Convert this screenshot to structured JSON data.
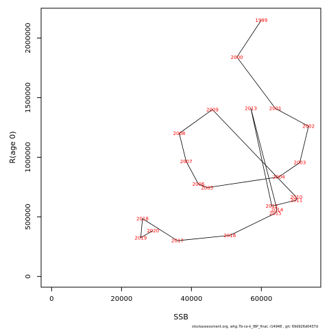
{
  "chart_data": {
    "type": "line",
    "xlabel": "SSB",
    "ylabel": "R(age 0)",
    "xlim": [
      -3000,
      77000
    ],
    "ylim": [
      -90000,
      2250000
    ],
    "xticks": [
      0,
      20000,
      40000,
      60000
    ],
    "yticks": [
      0,
      500000,
      1000000,
      1500000,
      2000000
    ],
    "grid": false,
    "series": [
      {
        "points": [
          {
            "year": "1999",
            "x": 60000,
            "y": 2150000
          },
          {
            "year": "2000",
            "x": 53000,
            "y": 1840000
          },
          {
            "year": "2001",
            "x": 64000,
            "y": 1410000
          },
          {
            "year": "2002",
            "x": 73500,
            "y": 1260000
          },
          {
            "year": "2003",
            "x": 71000,
            "y": 955000
          },
          {
            "year": "2004",
            "x": 65000,
            "y": 835000
          },
          {
            "year": "2005",
            "x": 44500,
            "y": 745000
          },
          {
            "year": "2006",
            "x": 42000,
            "y": 775000
          },
          {
            "year": "2007",
            "x": 38500,
            "y": 965000
          },
          {
            "year": "2008",
            "x": 36500,
            "y": 1200000
          },
          {
            "year": "2009",
            "x": 46000,
            "y": 1400000
          },
          {
            "year": "2010",
            "x": 70000,
            "y": 665000
          },
          {
            "year": "2011",
            "x": 70000,
            "y": 640000
          },
          {
            "year": "2012",
            "x": 63000,
            "y": 590000
          },
          {
            "year": "2013",
            "x": 57000,
            "y": 1410000
          },
          {
            "year": "2014",
            "x": 64500,
            "y": 560000
          },
          {
            "year": "2015",
            "x": 64000,
            "y": 530000
          },
          {
            "year": "2016",
            "x": 51000,
            "y": 345000
          },
          {
            "year": "2017",
            "x": 36000,
            "y": 300000
          },
          {
            "year": "2018",
            "x": 26000,
            "y": 485000
          },
          {
            "year": "2019",
            "x": 25500,
            "y": 325000
          },
          {
            "year": "2020",
            "x": 29000,
            "y": 385000
          }
        ]
      }
    ]
  },
  "footer_text": "stockassessment.org, whg.7b-ce-k_IBP_final, r14948 , git: 69d926d0437d"
}
